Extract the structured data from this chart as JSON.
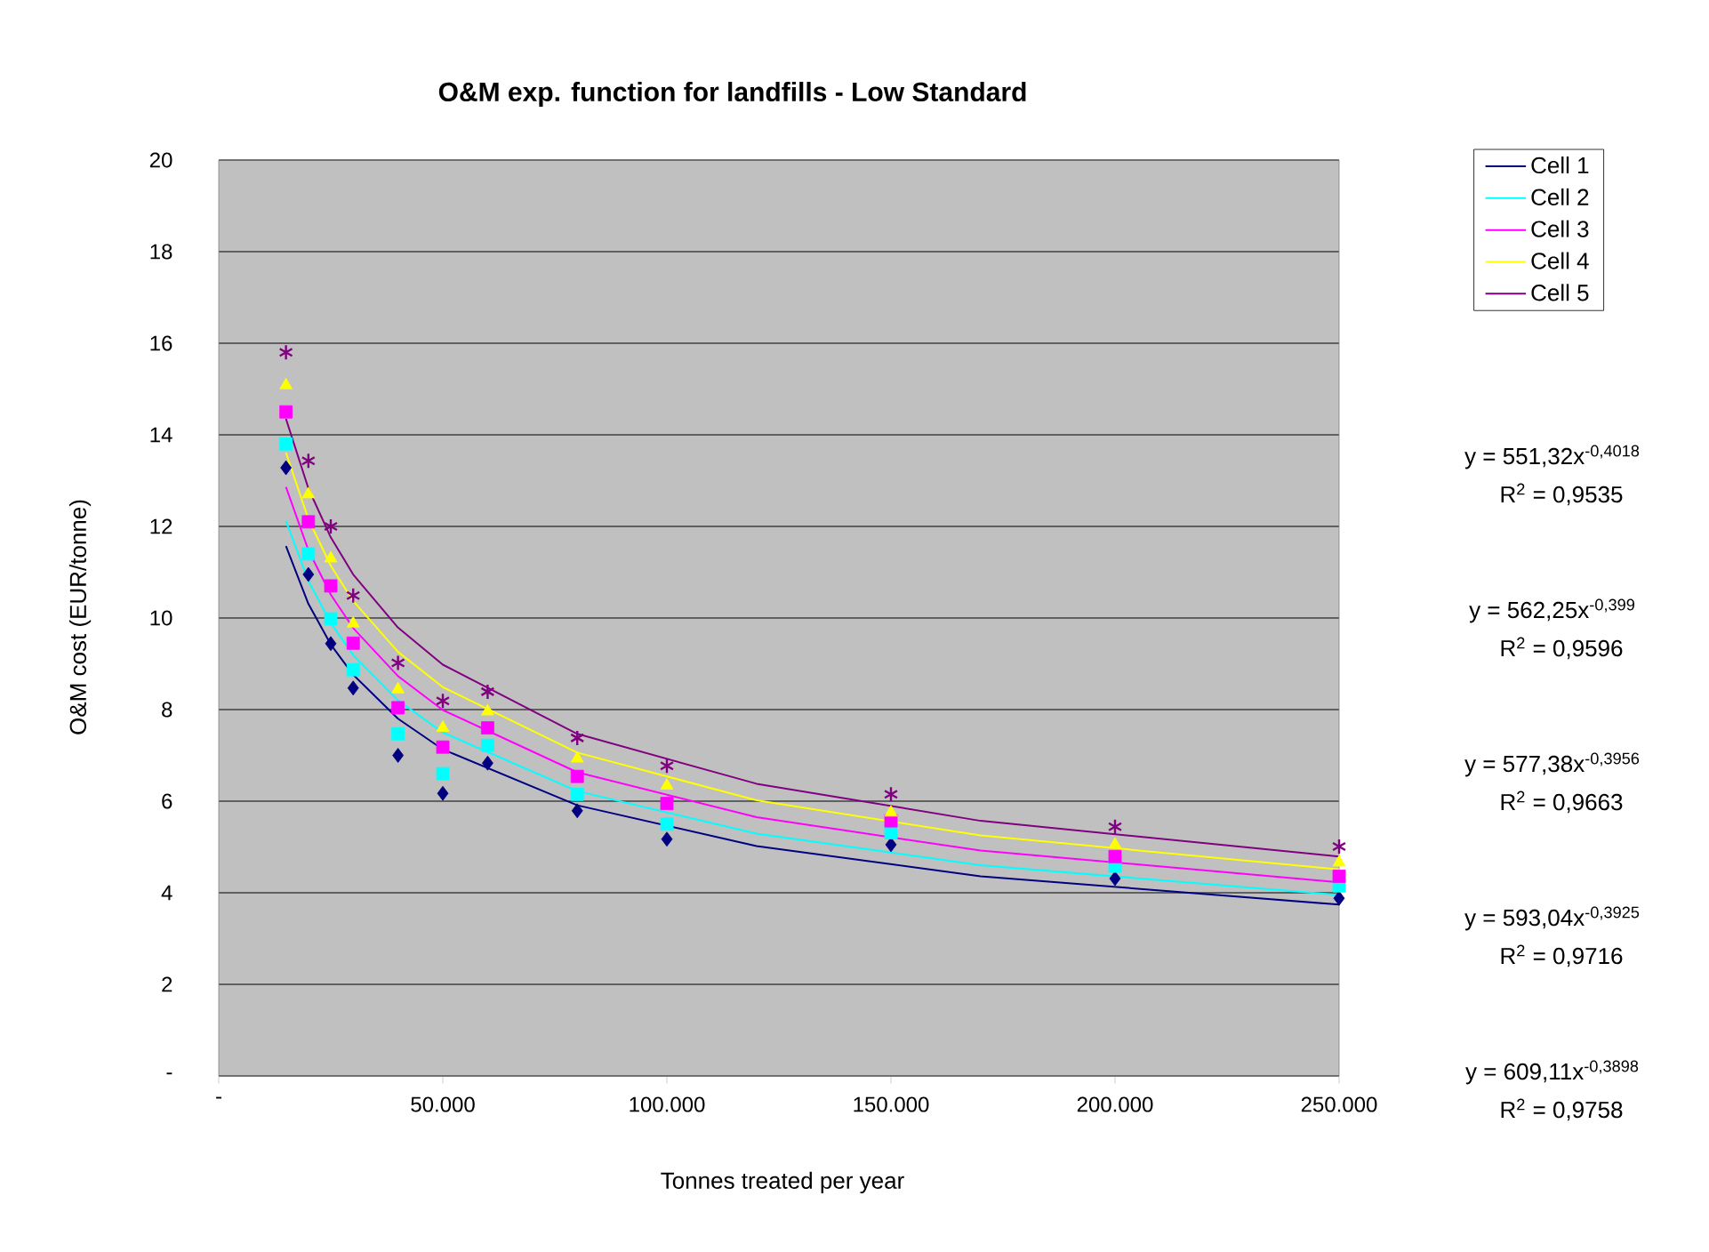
{
  "chart_data": {
    "type": "scatter",
    "title": "O&M exp. function for landfills - Low Standard",
    "xlabel": "Tonnes treated per year",
    "ylabel": "O&M cost (EUR/tonne)",
    "xlim": [
      0,
      250000
    ],
    "ylim": [
      0,
      20
    ],
    "xticks": [
      {
        "value": 0,
        "label": "-"
      },
      {
        "value": 50000,
        "label": "50.000"
      },
      {
        "value": 100000,
        "label": "100.000"
      },
      {
        "value": 150000,
        "label": "150.000"
      },
      {
        "value": 200000,
        "label": "200.000"
      },
      {
        "value": 250000,
        "label": "250.000"
      }
    ],
    "yticks": [
      {
        "value": 0,
        "label": "-"
      },
      2,
      4,
      6,
      8,
      10,
      12,
      14,
      16,
      18,
      20
    ],
    "grid": "y",
    "legend": "top right",
    "series": [
      {
        "marker": "diamond",
        "color": "#000080",
        "x": [
          15000,
          20000,
          25000,
          30000,
          40000,
          50000,
          60000,
          80000,
          100000,
          150000,
          200000,
          250000
        ],
        "values": [
          13.28,
          10.95,
          9.44,
          8.47,
          7.0,
          6.17,
          6.83,
          5.79,
          5.17,
          5.05,
          4.31,
          3.88
        ]
      },
      {
        "marker": "square",
        "color": "#00ffff",
        "x": [
          15000,
          20000,
          25000,
          30000,
          40000,
          50000,
          60000,
          80000,
          100000,
          150000,
          200000,
          250000
        ],
        "values": [
          13.8,
          11.4,
          9.98,
          8.87,
          7.47,
          6.6,
          7.22,
          6.15,
          5.5,
          5.31,
          4.58,
          4.15
        ]
      },
      {
        "marker": "square",
        "color": "#ff00ff",
        "x": [
          15000,
          20000,
          25000,
          30000,
          40000,
          50000,
          60000,
          80000,
          100000,
          150000,
          200000,
          250000
        ],
        "values": [
          14.5,
          12.1,
          10.7,
          9.45,
          8.04,
          7.18,
          7.6,
          6.54,
          5.95,
          5.57,
          4.79,
          4.36
        ]
      },
      {
        "marker": "triangle",
        "color": "#ffff00",
        "x": [
          15000,
          20000,
          25000,
          30000,
          40000,
          50000,
          60000,
          80000,
          100000,
          150000,
          200000,
          250000
        ],
        "values": [
          15.08,
          12.7,
          11.3,
          9.88,
          8.44,
          7.6,
          7.96,
          6.93,
          6.34,
          5.75,
          5.05,
          4.66
        ]
      },
      {
        "marker": "cross",
        "color": "#800080",
        "x": [
          15000,
          20000,
          25000,
          30000,
          40000,
          50000,
          60000,
          80000,
          100000,
          150000,
          200000,
          250000
        ],
        "values": [
          15.8,
          13.43,
          12.0,
          10.49,
          9.02,
          8.19,
          8.39,
          7.38,
          6.77,
          6.15,
          5.44,
          5.01
        ]
      },
      {
        "type": "line",
        "name": "Cell 1",
        "color": "#000080",
        "x": [
          15000,
          20000,
          25000,
          30000,
          40000,
          50000,
          80000,
          120000,
          170000,
          250000
        ],
        "values": [
          11.57,
          10.31,
          9.42,
          8.76,
          7.8,
          7.13,
          5.91,
          5.02,
          4.36,
          3.74
        ]
      },
      {
        "type": "line",
        "name": "Cell 2",
        "color": "#00ffff",
        "x": [
          15000,
          20000,
          25000,
          30000,
          40000,
          50000,
          80000,
          120000,
          170000,
          250000
        ],
        "values": [
          12.12,
          10.81,
          9.89,
          9.19,
          8.2,
          7.5,
          6.22,
          5.29,
          4.6,
          3.95
        ]
      },
      {
        "type": "line",
        "name": "Cell 3",
        "color": "#ff00ff",
        "x": [
          15000,
          20000,
          25000,
          30000,
          40000,
          50000,
          80000,
          120000,
          170000,
          250000
        ],
        "values": [
          12.86,
          11.48,
          10.51,
          9.78,
          8.73,
          7.99,
          6.63,
          5.65,
          4.92,
          4.23
        ]
      },
      {
        "type": "line",
        "name": "Cell 4",
        "color": "#ffff00",
        "x": [
          15000,
          20000,
          25000,
          30000,
          40000,
          50000,
          80000,
          120000,
          170000,
          250000
        ],
        "values": [
          13.61,
          12.16,
          11.14,
          10.37,
          9.26,
          8.49,
          7.06,
          6.02,
          5.25,
          4.51
        ]
      },
      {
        "type": "line",
        "name": "Cell 5",
        "color": "#800080",
        "x": [
          15000,
          20000,
          25000,
          30000,
          40000,
          50000,
          80000,
          120000,
          170000,
          250000
        ],
        "values": [
          14.35,
          12.83,
          11.76,
          10.95,
          9.79,
          8.98,
          7.47,
          6.38,
          5.57,
          4.79
        ]
      }
    ],
    "annotations": [
      "y = 551,32x$^{-0,4018}$",
      "R$^{2}$ = 0,9535",
      "y = 562,25x$^{-0,399}$",
      "R$^{2}$ = 0,9596",
      "y = 577,38x$^{-0,3956}$",
      "R$^{2}$ = 0,9663",
      "y = 593,04x$^{-0,3925}$",
      "R$^{2}$ = 0,9716",
      "y = 609,11x$^{-0,3898}$",
      "R$^{2}$ = 0,9758"
    ]
  }
}
